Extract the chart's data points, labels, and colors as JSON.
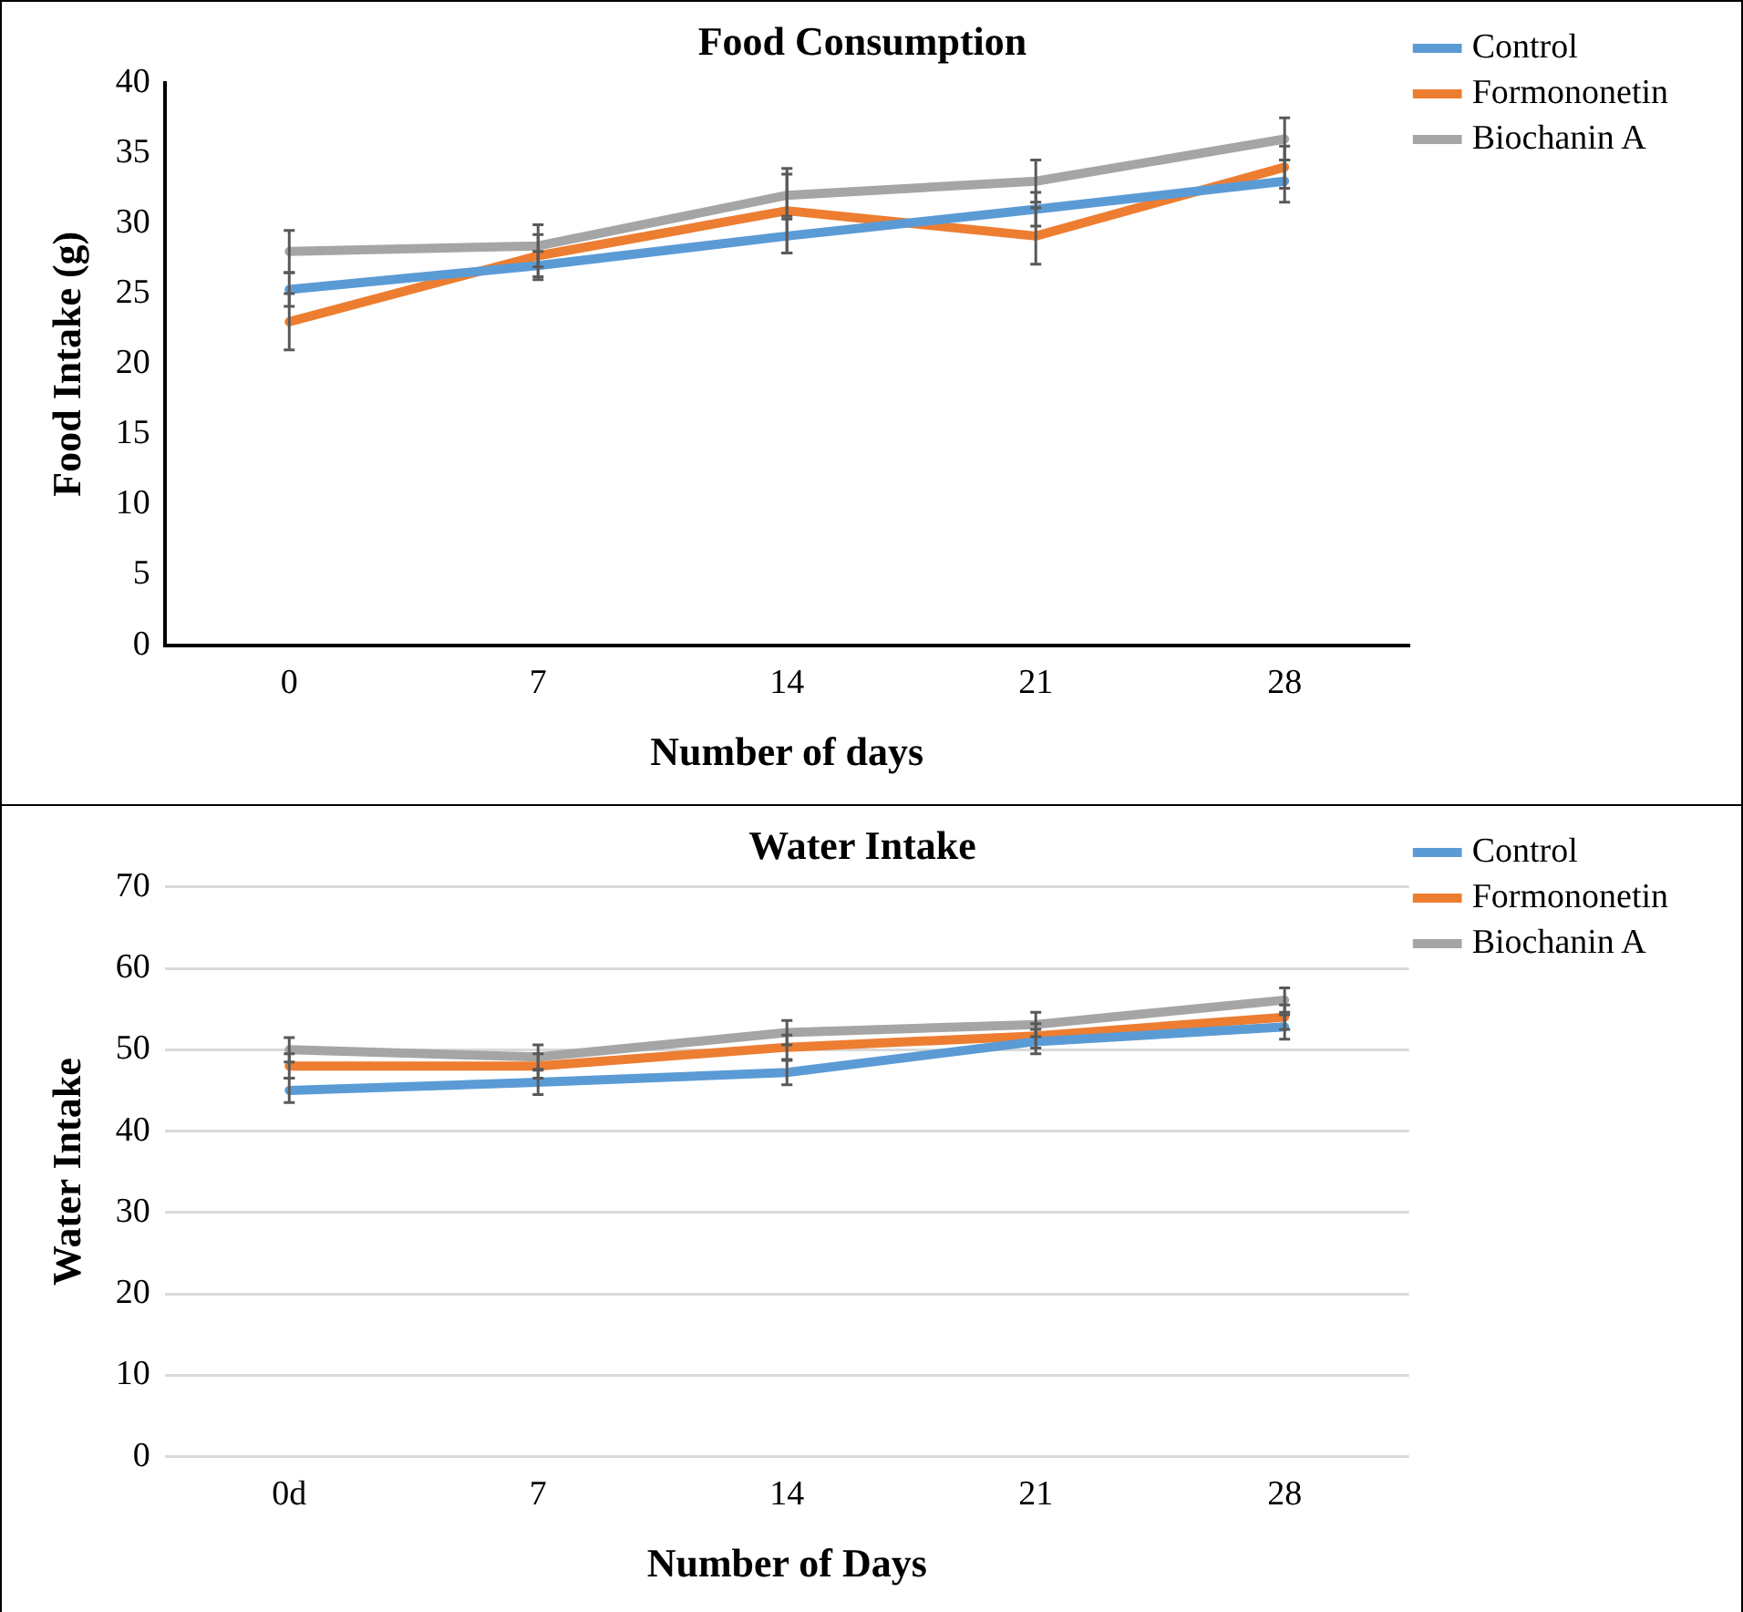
{
  "chart_data": [
    {
      "type": "line",
      "title": "Food Consumption",
      "xlabel": "Number of days",
      "ylabel": "Food Intake (g)",
      "categories": [
        "0",
        "7",
        "14",
        "21",
        "28"
      ],
      "ylim": [
        0,
        40
      ],
      "yticks": [
        0,
        5,
        10,
        15,
        20,
        25,
        30,
        35,
        40
      ],
      "legend": "right",
      "marker": "none",
      "series": [
        {
          "name": "Control",
          "color": "#5b9bd5",
          "values": [
            25.3,
            27,
            29.1,
            31,
            33
          ],
          "errors": [
            1.2,
            1,
            1.2,
            1.2,
            1.5
          ]
        },
        {
          "name": "Formononetin",
          "color": "#ed7d31",
          "values": [
            23,
            27.7,
            30.9,
            29.1,
            34
          ],
          "errors": [
            2,
            1.5,
            3,
            2,
            1.5
          ]
        },
        {
          "name": "Biochanin A",
          "color": "#a5a5a5",
          "values": [
            28,
            28.4,
            32,
            33,
            36
          ],
          "errors": [
            1.5,
            1.5,
            1.5,
            1.5,
            1.5
          ]
        }
      ]
    },
    {
      "type": "line",
      "title": "Water Intake",
      "xlabel": "Number of Days",
      "ylabel": "Water Intake",
      "categories": [
        "0d",
        "7",
        "14",
        "21",
        "28"
      ],
      "ylim": [
        0,
        70
      ],
      "yticks": [
        0,
        10,
        20,
        30,
        40,
        50,
        60,
        70
      ],
      "grid": "y",
      "legend": "right",
      "marker": "none",
      "series": [
        {
          "name": "Control",
          "color": "#5b9bd5",
          "values": [
            45,
            46,
            47.2,
            51,
            52.8
          ],
          "errors": [
            1.5,
            1.5,
            1.5,
            1.5,
            1.5
          ]
        },
        {
          "name": "Formononetin",
          "color": "#ed7d31",
          "values": [
            48,
            48,
            50.3,
            51.7,
            54
          ],
          "errors": [
            1.5,
            1.5,
            1.5,
            1.5,
            1.5
          ]
        },
        {
          "name": "Biochanin A",
          "color": "#a5a5a5",
          "values": [
            50,
            49.1,
            52.1,
            53.1,
            56.1
          ],
          "errors": [
            1.5,
            1.5,
            1.5,
            1.5,
            1.5
          ]
        }
      ]
    }
  ]
}
